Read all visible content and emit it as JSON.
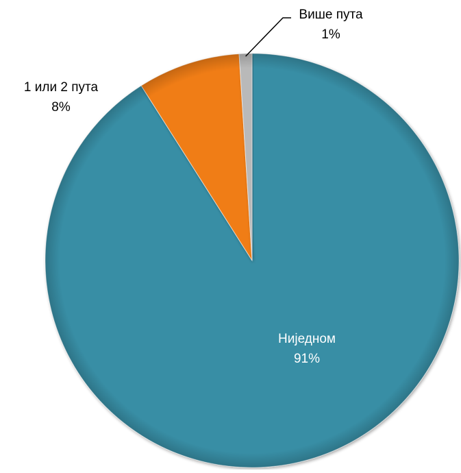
{
  "chart_data": {
    "type": "pie",
    "title": "",
    "start_angle_deg": 0,
    "direction": "clockwise",
    "slices": [
      {
        "label": "Ниједном",
        "value": 91,
        "value_label": "91%",
        "color": "#398ea5",
        "label_position": "inside",
        "label_color": "#ffffff"
      },
      {
        "label": "1 или 2 пута",
        "value": 8,
        "value_label": "8%",
        "color": "#f07d19",
        "label_position": "outside-left",
        "label_color": "#000000"
      },
      {
        "label": "Више пута",
        "value": 1,
        "value_label": "1%",
        "color": "#b9b9b9",
        "label_position": "outside-top-leader",
        "label_color": "#000000"
      }
    ],
    "legend": "none"
  }
}
